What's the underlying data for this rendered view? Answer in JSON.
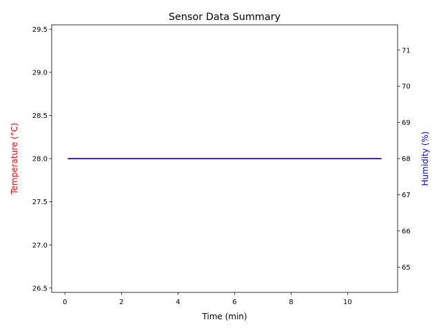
{
  "chart_data": {
    "type": "line",
    "title": "Sensor Data Summary",
    "xlabel": "Time (min)",
    "xlim": [
      -0.47,
      11.77
    ],
    "xticks": [
      0,
      2,
      4,
      6,
      8,
      10
    ],
    "y_left": {
      "label": "Temperature (°C)",
      "label_color": "#ff0000",
      "lim": [
        26.45,
        29.55
      ],
      "ticks": [
        26.5,
        27.0,
        27.5,
        28.0,
        28.5,
        29.0,
        29.5
      ],
      "tick_labels": [
        "26.5",
        "27.0",
        "27.5",
        "28.0",
        "28.5",
        "29.0",
        "29.5"
      ]
    },
    "y_right": {
      "label": "Humidity (%)",
      "label_color": "#0000ff",
      "lim": [
        64.3,
        71.7
      ],
      "ticks": [
        65,
        66,
        67,
        68,
        69,
        70,
        71
      ],
      "tick_labels": [
        "65",
        "66",
        "67",
        "68",
        "69",
        "70",
        "71"
      ]
    },
    "series": [
      {
        "axis": "left",
        "color": "#ff0000",
        "x": [
          0.1,
          11.2
        ],
        "y": [
          28.0,
          28.0
        ]
      },
      {
        "axis": "right",
        "color": "#0000ff",
        "x": [
          0.1,
          11.2
        ],
        "y": [
          68.0,
          68.0
        ]
      }
    ],
    "grid": false
  }
}
